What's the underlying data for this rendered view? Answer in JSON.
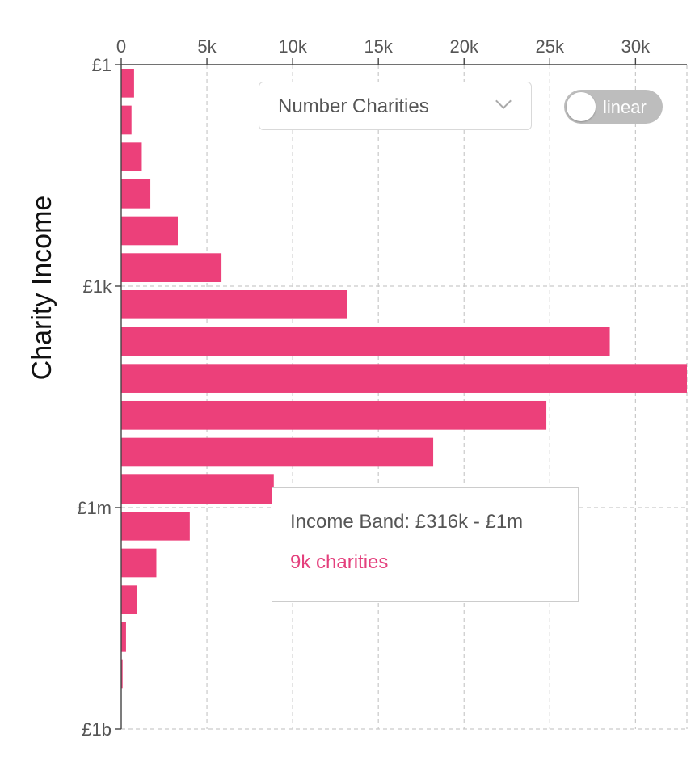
{
  "chart_data": {
    "type": "bar",
    "orientation": "horizontal",
    "ylabel": "Charity Income",
    "xlabel": "",
    "x_ticks": [
      "0",
      "5k",
      "10k",
      "15k",
      "20k",
      "25k",
      "30k"
    ],
    "x_tick_values": [
      0,
      5000,
      10000,
      15000,
      20000,
      25000,
      30000
    ],
    "xlim": [
      0,
      33000
    ],
    "x_axis_position": "top",
    "y_scale": "log",
    "y_ticks": [
      "£1",
      "£1k",
      "£1m",
      "£1b"
    ],
    "y_tick_values": [
      1,
      1000,
      1000000,
      1000000000
    ],
    "ylim": [
      1,
      1000000000
    ],
    "bar_color": "#ec407a",
    "grid": true,
    "bins": [
      {
        "from": 1,
        "to": 3.16,
        "value": 750
      },
      {
        "from": 3.16,
        "to": 10,
        "value": 600
      },
      {
        "from": 10,
        "to": 31.6,
        "value": 1200
      },
      {
        "from": 31.6,
        "to": 100,
        "value": 1700
      },
      {
        "from": 100,
        "to": 316,
        "value": 3300
      },
      {
        "from": 316,
        "to": 1000,
        "value": 5850
      },
      {
        "from": 1000,
        "to": 3160,
        "value": 13200
      },
      {
        "from": 3160,
        "to": 10000,
        "value": 28500
      },
      {
        "from": 10000,
        "to": 31600,
        "value": 34000
      },
      {
        "from": 31600,
        "to": 100000,
        "value": 24800
      },
      {
        "from": 100000,
        "to": 316000,
        "value": 18200
      },
      {
        "from": 316000,
        "to": 1000000,
        "value": 8900
      },
      {
        "from": 1000000,
        "to": 3160000,
        "value": 4000
      },
      {
        "from": 3160000,
        "to": 10000000,
        "value": 2050
      },
      {
        "from": 10000000,
        "to": 31600000,
        "value": 900
      },
      {
        "from": 31600000,
        "to": 100000000,
        "value": 280
      },
      {
        "from": 100000000,
        "to": 316000000,
        "value": 80
      },
      {
        "from": 316000000,
        "to": 1000000000,
        "value": 20
      }
    ]
  },
  "controls": {
    "metric_select": {
      "selected": "Number Charities"
    },
    "scale_toggle": {
      "label": "linear",
      "on": false
    }
  },
  "tooltip": {
    "title": "Income Band: £316k - £1m",
    "value": "9k charities",
    "value_color": "#e4407d"
  }
}
